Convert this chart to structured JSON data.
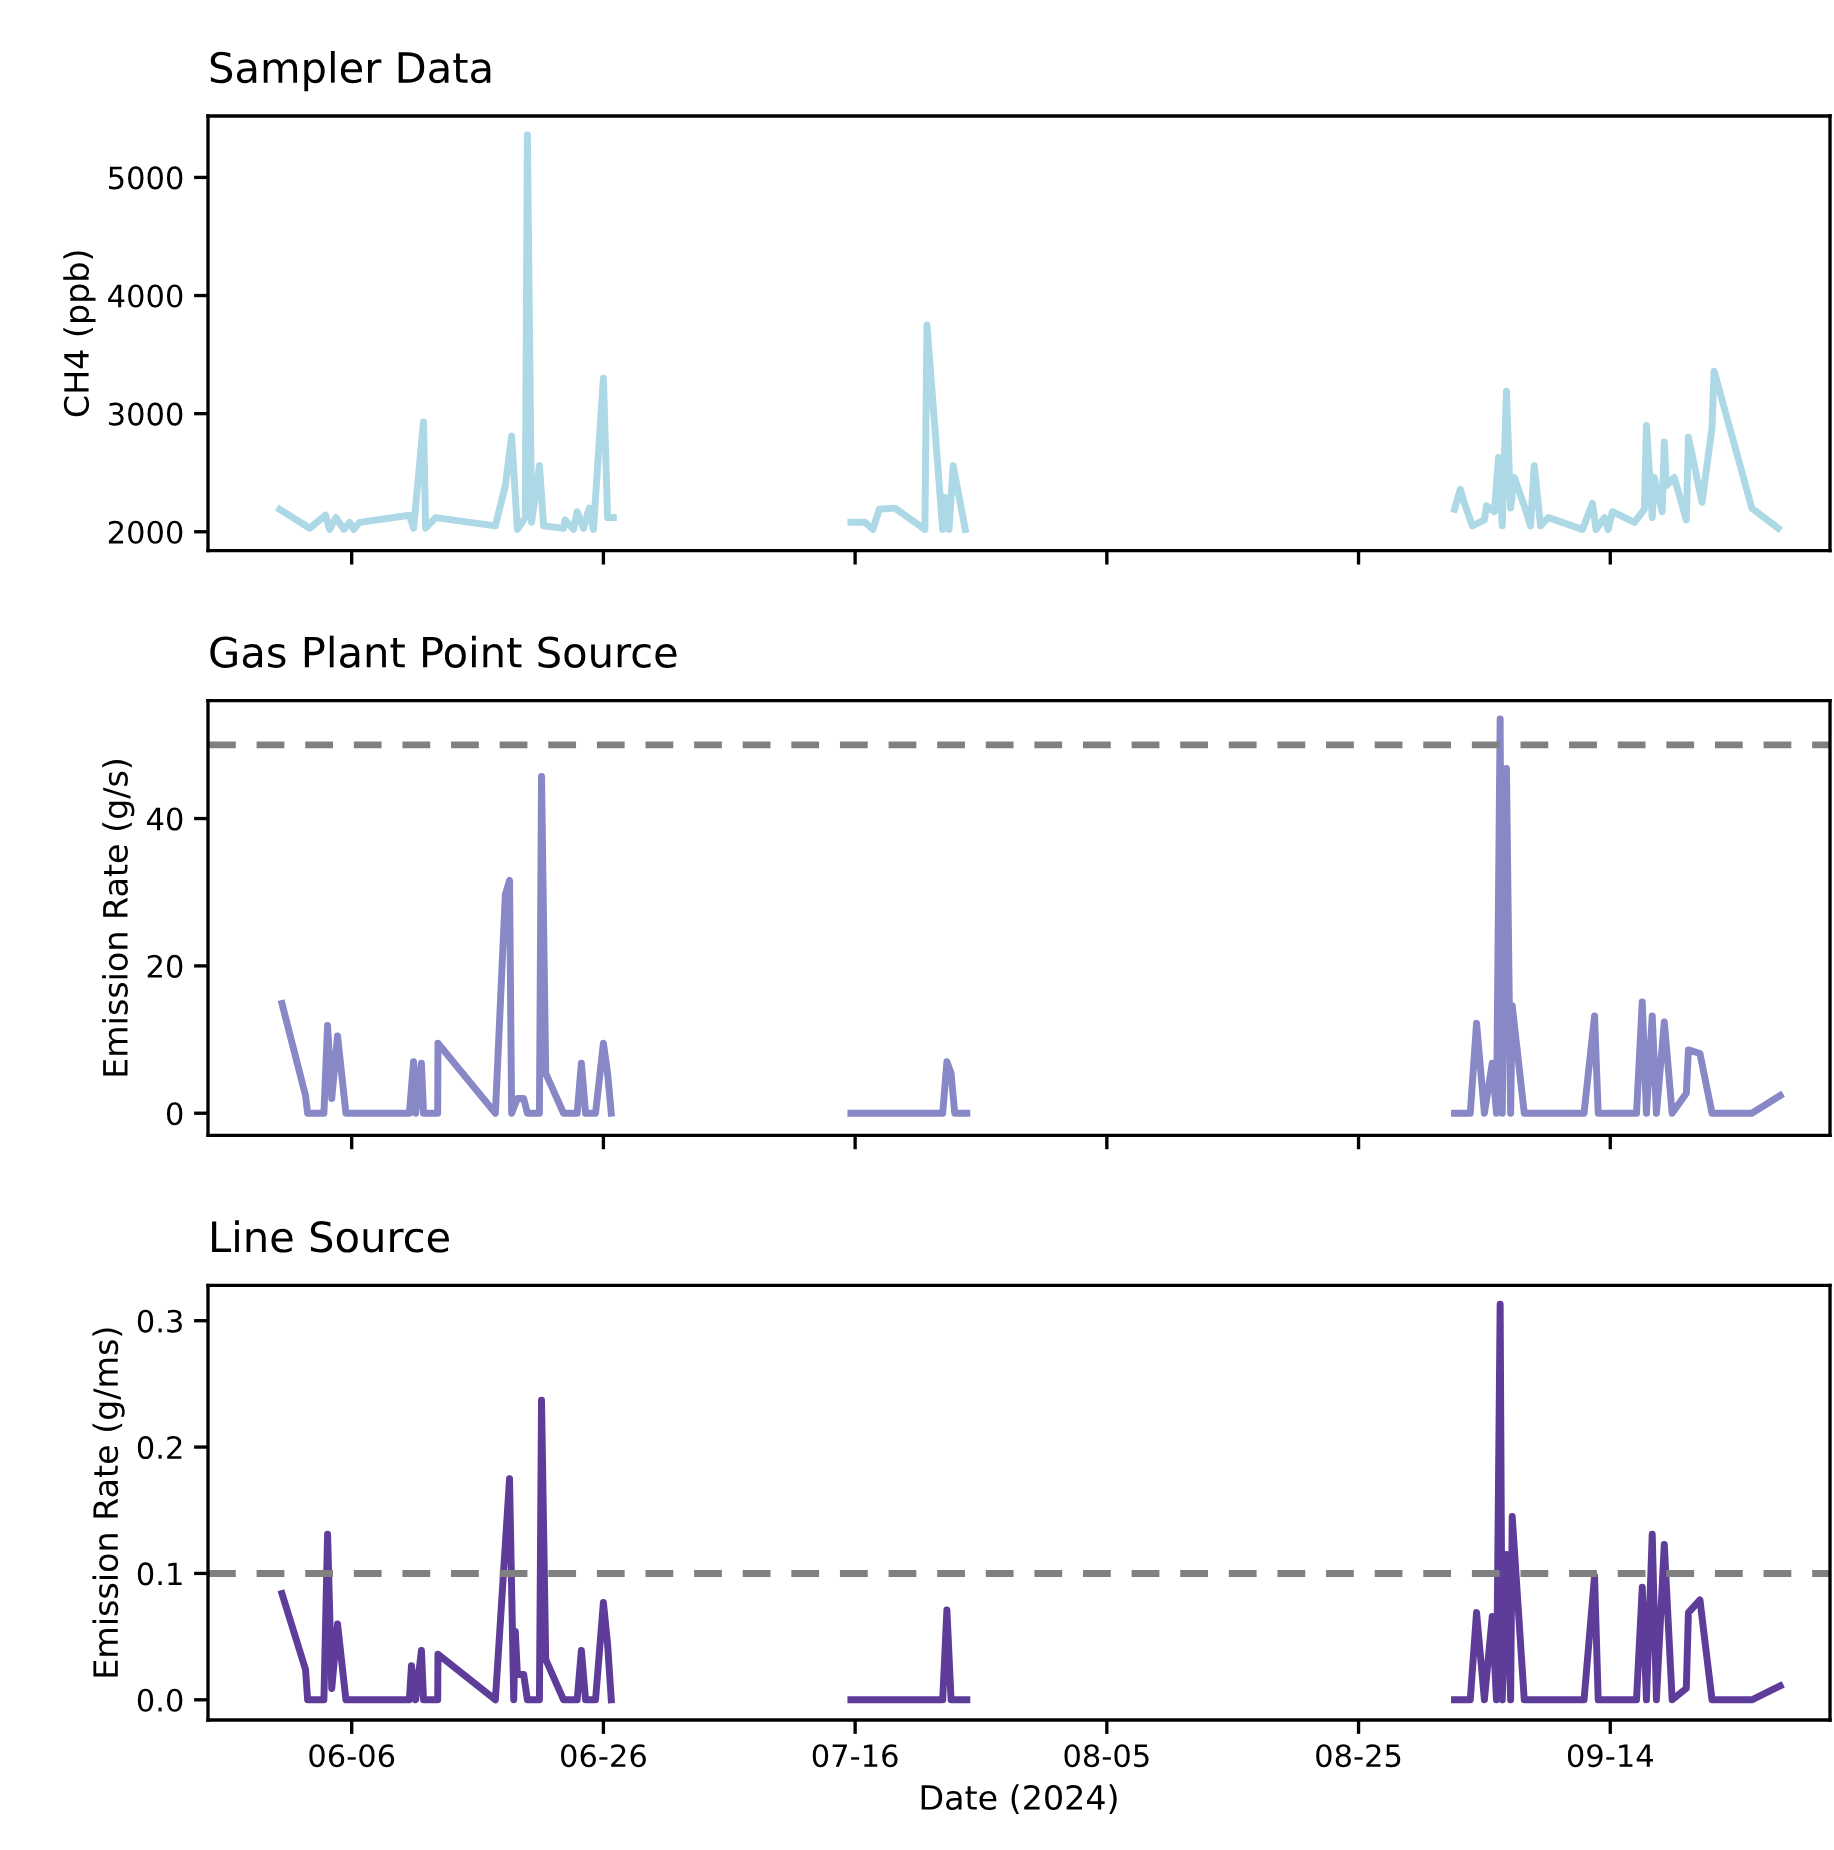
{
  "chart_data": [
    {
      "type": "line",
      "title": "Sampler Data",
      "ylabel": "CH4 (ppb)",
      "xlim": [
        "2024-05-25T14:00",
        "2024-10-01T11:00"
      ],
      "ylim": [
        1840,
        5520
      ],
      "yticks": [
        2000,
        3000,
        4000,
        5000
      ],
      "xticks": [
        {
          "value": "2024-06-06",
          "label": null
        },
        {
          "value": "2024-06-26",
          "label": null
        },
        {
          "value": "2024-07-16",
          "label": null
        },
        {
          "value": "2024-08-05",
          "label": null
        },
        {
          "value": "2024-08-25",
          "label": null
        },
        {
          "value": "2024-09-14",
          "label": null
        }
      ],
      "tick_labels": "y",
      "line_style": "solid",
      "marker": "none",
      "series": [
        {
          "color": "#add8e6",
          "x": [
            "2024-05-31T07:00",
            "2024-06-02T16:00",
            "2024-06-03T22:00",
            "2024-06-04T06:00",
            "2024-06-04T18:00",
            "2024-06-05T09:00",
            "2024-06-05T20:00",
            "2024-06-06T04:00",
            "2024-06-06T15:00",
            "2024-06-10T14:00",
            "2024-06-10T22:00",
            "2024-06-11T17:00",
            "2024-06-11T21:00",
            "2024-06-12T16:00",
            "2024-06-17T10:00",
            "2024-06-18T05:00",
            "2024-06-18T17:00",
            "2024-06-19T04:00",
            "2024-06-19T19:00",
            "2024-06-19T23:00",
            "2024-06-20T07:00",
            "2024-06-20T22:00",
            "2024-06-21T06:00",
            "2024-06-22T20:00",
            "2024-06-22T23:00",
            "2024-06-23T15:00",
            "2024-06-23T22:00",
            "2024-06-24T10:00",
            "2024-06-24T21:00",
            "2024-06-25T05:00",
            "2024-06-26T00:00",
            "2024-06-26T08:00",
            "2024-06-26T19:00",
            null,
            "2024-07-15T16:00",
            "2024-07-16T19:00",
            "2024-07-17T10:00",
            "2024-07-17T22:00",
            "2024-07-19T04:00",
            "2024-07-21T13:00",
            "2024-07-21T17:00",
            "2024-07-22T23:00",
            "2024-07-23T03:00",
            "2024-07-23T11:00",
            "2024-07-23T19:00",
            "2024-07-24T18:00",
            null,
            "2024-09-01T15:00",
            "2024-09-02T02:00",
            "2024-09-02T10:00",
            "2024-09-03T01:00",
            "2024-09-04T00:00",
            "2024-09-04T04:00",
            "2024-09-04T19:00",
            "2024-09-05T03:00",
            "2024-09-05T10:00",
            "2024-09-05T18:00",
            "2024-09-06T02:00",
            "2024-09-06T09:00",
            "2024-09-07T04:00",
            "2024-09-07T16:00",
            "2024-09-07T23:00",
            "2024-09-08T11:00",
            "2024-09-09T02:00",
            "2024-09-11T19:00",
            "2024-09-12T14:00",
            "2024-09-12T21:00",
            "2024-09-13T13:00",
            "2024-09-13T20:00",
            "2024-09-14T04:00",
            "2024-09-15T22:00",
            "2024-09-16T17:00",
            "2024-09-16T21:00",
            "2024-09-17T08:00",
            "2024-09-17T12:00",
            "2024-09-18T03:00",
            "2024-09-18T07:00",
            "2024-09-18T11:00",
            "2024-09-19T02:00",
            "2024-09-20T01:00",
            "2024-09-20T05:00",
            "2024-09-21T07:00",
            "2024-09-22T02:00",
            "2024-09-22T06:00",
            "2024-09-25T06:00",
            "2024-09-27T08:00"
          ],
          "values": [
            2190,
            2030,
            2140,
            2020,
            2120,
            2020,
            2080,
            2020,
            2080,
            2140,
            2030,
            2930,
            2030,
            2120,
            2050,
            2390,
            2810,
            2020,
            2120,
            5360,
            2080,
            2560,
            2050,
            2030,
            2100,
            2020,
            2170,
            2030,
            2200,
            2020,
            3300,
            2120,
            2120,
            null,
            2080,
            2080,
            2020,
            2190,
            2200,
            2020,
            3750,
            2020,
            2290,
            2020,
            2560,
            2020,
            null,
            2190,
            2360,
            2240,
            2050,
            2100,
            2220,
            2170,
            2630,
            2050,
            3190,
            2200,
            2460,
            2220,
            2050,
            2560,
            2050,
            2120,
            2020,
            2240,
            2020,
            2120,
            2020,
            2170,
            2080,
            2190,
            2900,
            2120,
            2460,
            2170,
            2760,
            2390,
            2460,
            2100,
            2800,
            2250,
            2880,
            3360,
            2200,
            2030
          ]
        }
      ]
    },
    {
      "type": "line",
      "title": "Gas Plant Point Source",
      "ylabel": "Emission Rate (g/s)",
      "xlim": [
        "2024-05-25T14:00",
        "2024-10-01T11:00"
      ],
      "ylim": [
        -3,
        56
      ],
      "yticks": [
        0,
        20,
        40
      ],
      "xticks": [
        {
          "value": "2024-06-06",
          "label": null
        },
        {
          "value": "2024-06-26",
          "label": null
        },
        {
          "value": "2024-07-16",
          "label": null
        },
        {
          "value": "2024-08-05",
          "label": null
        },
        {
          "value": "2024-08-25",
          "label": null
        },
        {
          "value": "2024-09-14",
          "label": null
        }
      ],
      "tick_labels": "y",
      "line_style": "solid",
      "marker": "none",
      "ref_lines": [
        {
          "axis": "y",
          "value": 50,
          "color": "#808080",
          "line_style": "dashed"
        }
      ],
      "series": [
        {
          "color": "#8888c6",
          "x": [
            "2024-05-31T11:00",
            "2024-06-02T08:00",
            "2024-06-02T12:00",
            "2024-06-03T19:00",
            "2024-06-04T02:00",
            "2024-06-04T10:00",
            "2024-06-04T21:00",
            "2024-06-05T13:00",
            "2024-06-10T14:00",
            "2024-06-10T22:00",
            "2024-06-11T02:00",
            "2024-06-11T13:00",
            "2024-06-11T17:00",
            "2024-06-12T20:00",
            "2024-06-12T20:30",
            "2024-06-17T10:00",
            "2024-06-18T05:00",
            "2024-06-18T13:00",
            "2024-06-18T17:00",
            "2024-06-19T04:00",
            "2024-06-19T16:00",
            "2024-06-19T23:00",
            "2024-06-20T22:00",
            "2024-06-21T02:00",
            "2024-06-21T10:00",
            "2024-06-22T20:00",
            "2024-06-23T22:00",
            "2024-06-24T06:00",
            "2024-06-24T14:00",
            "2024-06-25T09:00",
            "2024-06-26T00:00",
            "2024-06-26T08:00",
            "2024-06-26T15:00",
            null,
            "2024-07-15T16:00",
            "2024-07-22T23:00",
            "2024-07-23T07:00",
            "2024-07-23T15:00",
            "2024-07-23T22:00",
            "2024-07-24T21:00",
            null,
            "2024-09-01T15:00",
            "2024-09-02T21:00",
            "2024-09-03T09:00",
            "2024-09-04T00:00",
            "2024-09-04T15:00",
            "2024-09-04T23:00",
            "2024-09-05T06:00",
            "2024-09-05T10:00",
            "2024-09-05T18:00",
            "2024-09-06T02:00",
            "2024-09-06T05:00",
            "2024-09-07T04:00",
            "2024-09-11T22:00",
            "2024-09-12T18:00",
            "2024-09-13T01:00",
            "2024-09-16T02:00",
            "2024-09-16T13:00",
            "2024-09-16T21:00",
            "2024-09-17T08:00",
            "2024-09-17T16:00",
            "2024-09-18T07:00",
            "2024-09-18T22:00",
            "2024-09-20T01:00",
            "2024-09-20T05:00",
            "2024-09-21T03:00",
            "2024-09-22T02:00",
            "2024-09-25T06:00",
            "2024-09-27T12:00"
          ],
          "values": [
            14.9,
            2.4,
            0,
            0,
            11.9,
            2,
            10.5,
            0,
            0,
            7,
            0,
            6.8,
            0,
            0,
            9.5,
            0,
            29.7,
            31.6,
            0,
            2,
            2,
            0,
            0,
            45.7,
            5.4,
            0,
            0,
            6.8,
            0,
            0,
            9.5,
            5.4,
            0,
            null,
            0,
            0,
            7,
            5.4,
            0,
            0,
            null,
            0,
            0,
            12.2,
            0,
            6.8,
            0,
            53.5,
            0,
            46.8,
            0,
            14.6,
            0,
            0,
            13.2,
            0,
            0,
            15.1,
            0,
            13.2,
            0,
            12.4,
            0,
            2.7,
            8.6,
            8.1,
            0,
            0,
            2.4
          ]
        }
      ]
    },
    {
      "type": "line",
      "title": "Line Source",
      "ylabel": "Emission Rate (g/ms)",
      "xlabel": "Date (2024)",
      "xlim": [
        "2024-05-25T14:00",
        "2024-10-01T11:00"
      ],
      "ylim": [
        -0.016,
        0.328
      ],
      "yticks": [
        {
          "value": 0,
          "label": "0.0"
        },
        0.1,
        0.2,
        0.3
      ],
      "xticks": [
        {
          "value": "2024-06-06",
          "label": "06-06"
        },
        {
          "value": "2024-06-26",
          "label": "06-26"
        },
        {
          "value": "2024-07-16",
          "label": "07-16"
        },
        {
          "value": "2024-08-05",
          "label": "08-05"
        },
        {
          "value": "2024-08-25",
          "label": "08-25"
        },
        {
          "value": "2024-09-14",
          "label": "09-14"
        }
      ],
      "line_style": "solid",
      "marker": "none",
      "ref_lines": [
        {
          "axis": "y",
          "value": 0.1,
          "color": "#808080",
          "line_style": "dashed"
        }
      ],
      "series": [
        {
          "color": "#5e3c99",
          "x": [
            "2024-05-31T11:00",
            "2024-06-02T08:00",
            "2024-06-02T12:00",
            "2024-06-03T19:00",
            "2024-06-04T02:00",
            "2024-06-04T10:00",
            "2024-06-04T21:00",
            "2024-06-05T13:00",
            "2024-06-10T14:00",
            "2024-06-10T18:00",
            "2024-06-11T02:00",
            "2024-06-11T13:00",
            "2024-06-11T17:00",
            "2024-06-12T20:00",
            "2024-06-12T20:30",
            "2024-06-17T10:00",
            "2024-06-18T13:00",
            "2024-06-18T21:00",
            "2024-06-19T00:00",
            "2024-06-19T04:00",
            "2024-06-19T16:00",
            "2024-06-19T23:00",
            "2024-06-20T22:00",
            "2024-06-21T02:00",
            "2024-06-21T10:00",
            "2024-06-22T20:00",
            "2024-06-23T22:00",
            "2024-06-24T06:00",
            "2024-06-24T14:00",
            "2024-06-25T09:00",
            "2024-06-26T00:00",
            "2024-06-26T08:00",
            "2024-06-26T15:00",
            null,
            "2024-07-15T16:00",
            "2024-07-22T23:00",
            "2024-07-23T07:00",
            "2024-07-23T15:00",
            "2024-07-24T21:00",
            null,
            "2024-09-01T15:00",
            "2024-09-02T21:00",
            "2024-09-03T09:00",
            "2024-09-04T00:00",
            "2024-09-04T15:00",
            "2024-09-04T23:00",
            "2024-09-05T06:00",
            "2024-09-05T10:00",
            "2024-09-05T18:00",
            "2024-09-06T02:00",
            "2024-09-06T05:00",
            "2024-09-07T04:00",
            "2024-09-11T22:00",
            "2024-09-12T18:00",
            "2024-09-13T01:00",
            "2024-09-16T02:00",
            "2024-09-16T13:00",
            "2024-09-16T21:00",
            "2024-09-17T08:00",
            "2024-09-17T16:00",
            "2024-09-18T07:00",
            "2024-09-18T22:00",
            "2024-09-20T01:00",
            "2024-09-20T05:00",
            "2024-09-21T03:00",
            "2024-09-22T02:00",
            "2024-09-25T06:00",
            "2024-09-27T12:00"
          ],
          "values": [
            0.084,
            0.024,
            0,
            0,
            0.131,
            0.009,
            0.06,
            0,
            0,
            0.027,
            0,
            0.039,
            0,
            0,
            0.036,
            0,
            0.175,
            0,
            0.054,
            0.02,
            0.02,
            0,
            0,
            0.237,
            0.032,
            0,
            0,
            0.039,
            0,
            0,
            0.077,
            0.044,
            0,
            null,
            0,
            0,
            0.071,
            0,
            0,
            null,
            0,
            0,
            0.069,
            0,
            0.066,
            0,
            0.313,
            0,
            0.115,
            0,
            0.145,
            0,
            0,
            0.098,
            0,
            0,
            0.089,
            0,
            0.131,
            0,
            0.123,
            0,
            0.009,
            0.069,
            0.079,
            0,
            0,
            0.011
          ]
        }
      ]
    }
  ]
}
